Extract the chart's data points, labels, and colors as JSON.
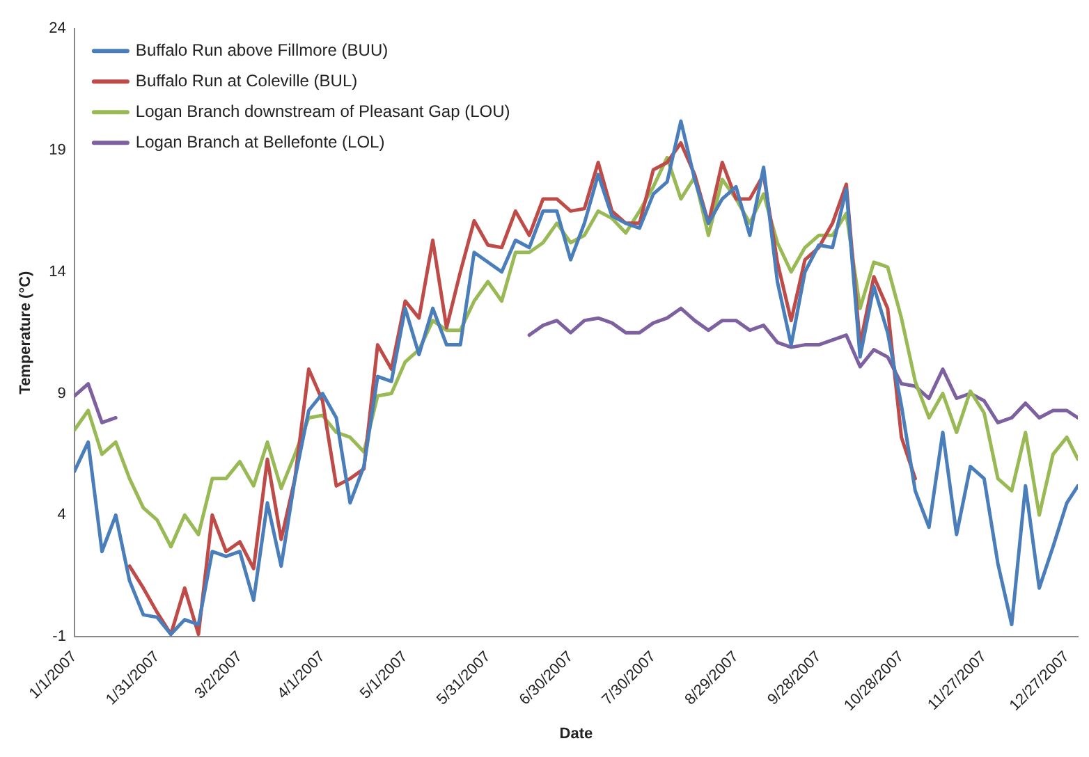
{
  "chart_data": {
    "type": "line",
    "xlabel": "Date",
    "ylabel": "Temperature (°C)",
    "legend": "top left",
    "marker": "none",
    "ylim": [
      -1,
      24
    ],
    "yticks": [
      -1,
      4,
      9,
      14,
      19,
      24
    ],
    "xlim": [
      "2007-01-01",
      "2007-12-31"
    ],
    "xticks": [
      {
        "value": "2007-01-01",
        "label": "1/1/2007"
      },
      {
        "value": "2007-01-31",
        "label": "1/31/2007"
      },
      {
        "value": "2007-03-02",
        "label": "3/2/2007"
      },
      {
        "value": "2007-04-01",
        "label": "4/1/2007"
      },
      {
        "value": "2007-05-01",
        "label": "5/1/2007"
      },
      {
        "value": "2007-05-31",
        "label": "5/31/2007"
      },
      {
        "value": "2007-06-30",
        "label": "6/30/2007"
      },
      {
        "value": "2007-07-30",
        "label": "7/30/2007"
      },
      {
        "value": "2007-08-29",
        "label": "8/29/2007"
      },
      {
        "value": "2007-09-28",
        "label": "9/28/2007"
      },
      {
        "value": "2007-10-28",
        "label": "10/28/2007"
      },
      {
        "value": "2007-11-27",
        "label": "11/27/2007"
      },
      {
        "value": "2007-12-27",
        "label": "12/27/2007"
      }
    ],
    "x": [
      "2007-01-01",
      "2007-01-06",
      "2007-01-11",
      "2007-01-16",
      "2007-01-21",
      "2007-01-26",
      "2007-01-31",
      "2007-02-05",
      "2007-02-10",
      "2007-02-15",
      "2007-02-20",
      "2007-02-25",
      "2007-03-02",
      "2007-03-07",
      "2007-03-12",
      "2007-03-17",
      "2007-03-22",
      "2007-03-27",
      "2007-04-01",
      "2007-04-06",
      "2007-04-11",
      "2007-04-16",
      "2007-04-21",
      "2007-04-26",
      "2007-05-01",
      "2007-05-06",
      "2007-05-11",
      "2007-05-16",
      "2007-05-21",
      "2007-05-26",
      "2007-05-31",
      "2007-06-05",
      "2007-06-10",
      "2007-06-15",
      "2007-06-20",
      "2007-06-25",
      "2007-06-30",
      "2007-07-05",
      "2007-07-10",
      "2007-07-15",
      "2007-07-20",
      "2007-07-25",
      "2007-07-30",
      "2007-08-04",
      "2007-08-09",
      "2007-08-14",
      "2007-08-19",
      "2007-08-24",
      "2007-08-29",
      "2007-09-03",
      "2007-09-08",
      "2007-09-13",
      "2007-09-18",
      "2007-09-23",
      "2007-09-28",
      "2007-10-03",
      "2007-10-08",
      "2007-10-13",
      "2007-10-18",
      "2007-10-23",
      "2007-10-28",
      "2007-11-02",
      "2007-11-07",
      "2007-11-12",
      "2007-11-17",
      "2007-11-22",
      "2007-11-27",
      "2007-12-02",
      "2007-12-07",
      "2007-12-12",
      "2007-12-17",
      "2007-12-22",
      "2007-12-27",
      "2007-12-31"
    ],
    "series": [
      {
        "name": "Buffalo Run above Fillmore (BUU)",
        "color": "#4a7ebb",
        "values": [
          5.8,
          7.0,
          2.5,
          4.0,
          1.3,
          -0.1,
          -0.2,
          -0.9,
          -0.3,
          -0.5,
          2.5,
          2.3,
          2.5,
          0.5,
          4.5,
          1.9,
          5.5,
          8.3,
          9.0,
          8.0,
          4.5,
          6.0,
          9.7,
          9.5,
          12.5,
          10.6,
          12.5,
          11.0,
          11.0,
          14.8,
          14.4,
          14.0,
          15.3,
          15.0,
          16.5,
          16.5,
          14.5,
          16.0,
          18.0,
          16.3,
          16.0,
          15.8,
          17.2,
          17.7,
          20.2,
          17.8,
          16.0,
          17.0,
          17.5,
          15.5,
          18.3,
          13.6,
          11.0,
          14.0,
          15.1,
          15.0,
          17.4,
          10.5,
          13.4,
          11.5,
          8.5,
          5.0,
          3.5,
          7.4,
          3.2,
          6.0,
          5.5,
          2.0,
          -0.5,
          5.2,
          1.0,
          2.7,
          4.5,
          5.2
        ]
      },
      {
        "name": "Buffalo Run at Coleville (BUL)",
        "color": "#be4b48",
        "values": [
          null,
          null,
          null,
          null,
          1.9,
          1.0,
          0.0,
          -0.9,
          1.0,
          -0.9,
          4.0,
          2.5,
          2.9,
          1.8,
          6.3,
          3.0,
          5.5,
          10.0,
          8.7,
          5.2,
          5.5,
          5.9,
          11.0,
          10.0,
          12.8,
          12.1,
          15.3,
          11.7,
          14.0,
          16.1,
          15.1,
          15.0,
          16.5,
          15.5,
          17.0,
          17.0,
          16.5,
          16.6,
          18.5,
          16.5,
          16.0,
          16.0,
          18.2,
          18.5,
          19.3,
          18.0,
          16.0,
          18.5,
          17.0,
          17.0,
          18.0,
          14.4,
          12.0,
          14.5,
          15.0,
          16.0,
          17.6,
          11.0,
          13.8,
          12.5,
          7.2,
          5.5,
          null,
          null,
          null,
          null,
          null,
          null,
          null,
          null,
          null,
          null,
          null,
          null
        ]
      },
      {
        "name": "Logan Branch downstream of Pleasant Gap (LOU)",
        "color": "#98b954",
        "values": [
          7.5,
          8.3,
          6.5,
          7.0,
          5.5,
          4.3,
          3.8,
          2.7,
          4.0,
          3.2,
          5.5,
          5.5,
          6.2,
          5.2,
          7.0,
          5.1,
          6.5,
          8.0,
          8.1,
          7.4,
          7.2,
          6.6,
          8.9,
          9.0,
          10.3,
          10.8,
          12.0,
          11.6,
          11.6,
          12.8,
          13.6,
          12.8,
          14.8,
          14.8,
          15.2,
          16.0,
          15.2,
          15.5,
          16.5,
          16.2,
          15.6,
          16.5,
          17.5,
          18.7,
          17.0,
          17.9,
          15.5,
          17.8,
          17.0,
          16.0,
          17.2,
          15.2,
          14.0,
          15.0,
          15.5,
          15.5,
          16.4,
          12.5,
          14.4,
          14.2,
          12.1,
          9.5,
          8.0,
          9.0,
          7.4,
          9.1,
          8.2,
          5.5,
          5.0,
          7.4,
          4.0,
          6.5,
          7.2,
          6.3
        ]
      },
      {
        "name": "Logan Branch at Bellefonte (LOL)",
        "color": "#7d60a0",
        "values": [
          8.9,
          9.4,
          7.8,
          8.0,
          null,
          null,
          null,
          null,
          null,
          null,
          null,
          null,
          null,
          null,
          null,
          null,
          null,
          null,
          null,
          null,
          null,
          null,
          null,
          null,
          null,
          null,
          null,
          null,
          null,
          null,
          null,
          null,
          null,
          11.4,
          11.8,
          12.0,
          11.5,
          12.0,
          12.1,
          11.9,
          11.5,
          11.5,
          11.9,
          12.1,
          12.5,
          12.0,
          11.6,
          12.0,
          12.0,
          11.6,
          11.8,
          11.1,
          10.9,
          11.0,
          11.0,
          11.2,
          11.4,
          10.1,
          10.8,
          10.5,
          9.4,
          9.3,
          8.8,
          10.0,
          8.8,
          9.0,
          8.7,
          7.8,
          8.0,
          8.6,
          8.0,
          8.3,
          8.3,
          8.0
        ]
      }
    ]
  }
}
